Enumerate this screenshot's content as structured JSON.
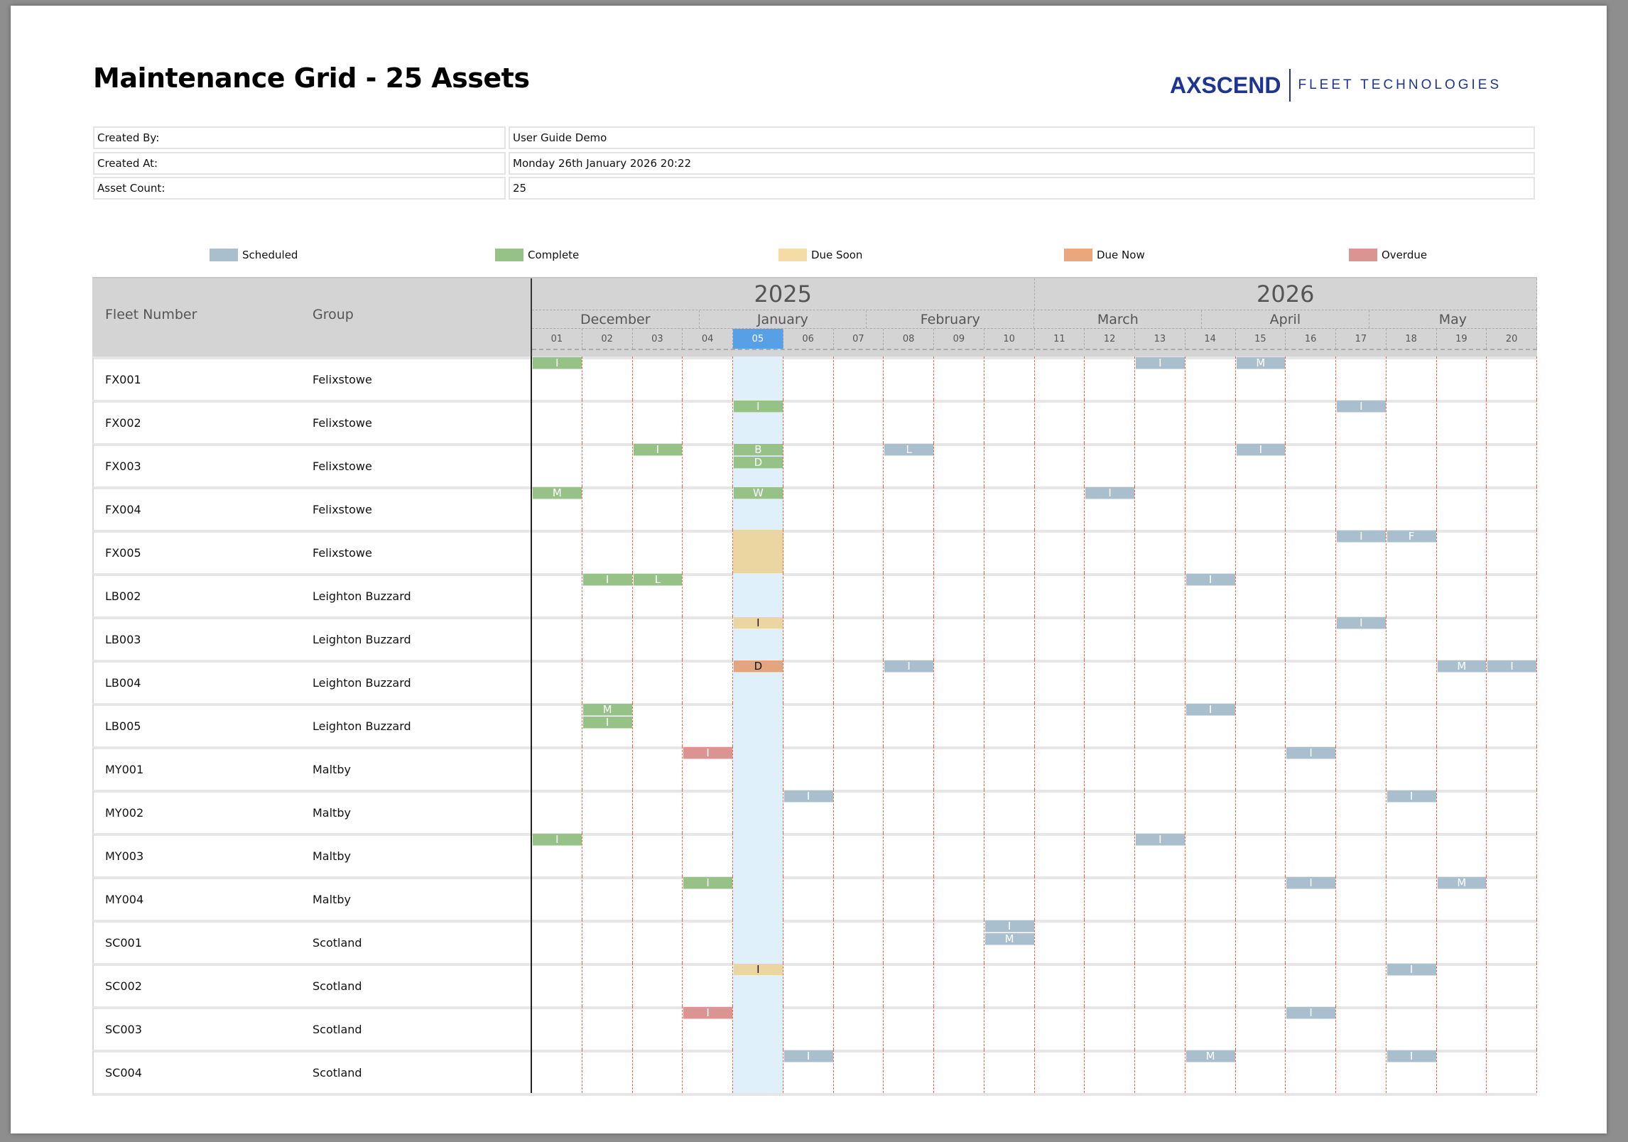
{
  "title": "Maintenance Grid - 25 Assets",
  "logo": {
    "main": "AXSCEND",
    "sub": "FLEET TECHNOLOGIES",
    "color": "#1d3591"
  },
  "info": [
    {
      "label": "Created By:",
      "value": "User Guide Demo"
    },
    {
      "label": "Created At:",
      "value": "Monday 26th January 2026 20:22"
    },
    {
      "label": "Asset Count:",
      "value": "25"
    }
  ],
  "legend": [
    {
      "key": "scheduled",
      "label": "Scheduled",
      "color": "#a9bfcd"
    },
    {
      "key": "complete",
      "label": "Complete",
      "color": "#96c187"
    },
    {
      "key": "due_soon",
      "label": "Due Soon",
      "color": "#f5dca6"
    },
    {
      "key": "due_now",
      "label": "Due Now",
      "color": "#eba77c"
    },
    {
      "key": "overdue",
      "label": "Overdue",
      "color": "#dc9493"
    }
  ],
  "status_colors": {
    "scheduled": "#a9bfcd",
    "complete": "#96c187",
    "due_soon": "#ebd6a2",
    "due_now": "#e2a57e",
    "overdue": "#dc9493",
    "today_column": "#dff0fb",
    "today_header": "#58a0e6"
  },
  "grid": {
    "headers": {
      "fleet": "Fleet Number",
      "group": "Group"
    },
    "years": [
      {
        "label": "2025",
        "span": 10
      },
      {
        "label": "2026",
        "span": 10
      }
    ],
    "months": [
      {
        "label": "December",
        "span": 3.33
      },
      {
        "label": "January",
        "span": 3.33
      },
      {
        "label": "February",
        "span": 3.34
      },
      {
        "label": "March",
        "span": 3.33
      },
      {
        "label": "April",
        "span": 3.33
      },
      {
        "label": "May",
        "span": 3.34
      }
    ],
    "weeks": [
      "01",
      "02",
      "03",
      "04",
      "05",
      "06",
      "07",
      "08",
      "09",
      "10",
      "11",
      "12",
      "13",
      "14",
      "15",
      "16",
      "17",
      "18",
      "19",
      "20"
    ],
    "current_week_index": 4,
    "rows": [
      {
        "fleet": "FX001",
        "group": "Felixstowe",
        "events": [
          {
            "week": 0,
            "status": "complete",
            "codes": [
              "I"
            ]
          },
          {
            "week": 12,
            "status": "scheduled",
            "codes": [
              "I"
            ]
          },
          {
            "week": 14,
            "status": "scheduled",
            "codes": [
              "M"
            ]
          }
        ]
      },
      {
        "fleet": "FX002",
        "group": "Felixstowe",
        "events": [
          {
            "week": 4,
            "status": "complete",
            "codes": [
              "I"
            ]
          },
          {
            "week": 16,
            "status": "scheduled",
            "codes": [
              "I"
            ]
          }
        ]
      },
      {
        "fleet": "FX003",
        "group": "Felixstowe",
        "events": [
          {
            "week": 2,
            "status": "complete",
            "codes": [
              "I"
            ]
          },
          {
            "week": 4,
            "status": "complete",
            "codes": [
              "B",
              "D"
            ]
          },
          {
            "week": 7,
            "status": "scheduled",
            "codes": [
              "L"
            ]
          },
          {
            "week": 14,
            "status": "scheduled",
            "codes": [
              "I"
            ]
          }
        ]
      },
      {
        "fleet": "FX004",
        "group": "Felixstowe",
        "events": [
          {
            "week": 0,
            "status": "complete",
            "codes": [
              "M"
            ]
          },
          {
            "week": 4,
            "status": "complete",
            "codes": [
              "W"
            ]
          },
          {
            "week": 11,
            "status": "scheduled",
            "codes": [
              "I"
            ]
          }
        ]
      },
      {
        "fleet": "FX005",
        "group": "Felixstowe",
        "fill_week": {
          "week": 4,
          "status": "due_soon"
        },
        "events": [
          {
            "week": 16,
            "status": "scheduled",
            "codes": [
              "I"
            ]
          },
          {
            "week": 17,
            "status": "scheduled",
            "codes": [
              "F"
            ]
          }
        ]
      },
      {
        "fleet": "LB002",
        "group": "Leighton Buzzard",
        "events": [
          {
            "week": 1,
            "status": "complete",
            "codes": [
              "I"
            ]
          },
          {
            "week": 2,
            "status": "complete",
            "codes": [
              "L"
            ]
          },
          {
            "week": 13,
            "status": "scheduled",
            "codes": [
              "I"
            ]
          }
        ]
      },
      {
        "fleet": "LB003",
        "group": "Leighton Buzzard",
        "events": [
          {
            "week": 4,
            "status": "due_soon",
            "codes": [
              "I"
            ]
          },
          {
            "week": 16,
            "status": "scheduled",
            "codes": [
              "I"
            ]
          }
        ]
      },
      {
        "fleet": "LB004",
        "group": "Leighton Buzzard",
        "events": [
          {
            "week": 4,
            "status": "due_now",
            "codes": [
              "D"
            ]
          },
          {
            "week": 7,
            "status": "scheduled",
            "codes": [
              "I"
            ]
          },
          {
            "week": 18,
            "status": "scheduled",
            "codes": [
              "M"
            ]
          },
          {
            "week": 19,
            "status": "scheduled",
            "codes": [
              "I"
            ]
          }
        ]
      },
      {
        "fleet": "LB005",
        "group": "Leighton Buzzard",
        "events": [
          {
            "week": 1,
            "status": "complete",
            "codes": [
              "M",
              "I"
            ]
          },
          {
            "week": 13,
            "status": "scheduled",
            "codes": [
              "I"
            ]
          }
        ]
      },
      {
        "fleet": "MY001",
        "group": "Maltby",
        "events": [
          {
            "week": 3,
            "status": "overdue",
            "codes": [
              "I"
            ]
          },
          {
            "week": 15,
            "status": "scheduled",
            "codes": [
              "I"
            ]
          }
        ]
      },
      {
        "fleet": "MY002",
        "group": "Maltby",
        "events": [
          {
            "week": 5,
            "status": "scheduled",
            "codes": [
              "I"
            ]
          },
          {
            "week": 17,
            "status": "scheduled",
            "codes": [
              "I"
            ]
          }
        ]
      },
      {
        "fleet": "MY003",
        "group": "Maltby",
        "events": [
          {
            "week": 0,
            "status": "complete",
            "codes": [
              "I"
            ]
          },
          {
            "week": 12,
            "status": "scheduled",
            "codes": [
              "I"
            ]
          }
        ]
      },
      {
        "fleet": "MY004",
        "group": "Maltby",
        "events": [
          {
            "week": 3,
            "status": "complete",
            "codes": [
              "I"
            ]
          },
          {
            "week": 15,
            "status": "scheduled",
            "codes": [
              "I"
            ]
          },
          {
            "week": 18,
            "status": "scheduled",
            "codes": [
              "M"
            ]
          }
        ]
      },
      {
        "fleet": "SC001",
        "group": "Scotland",
        "events": [
          {
            "week": 9,
            "status": "scheduled",
            "codes": [
              "I",
              "M"
            ]
          }
        ]
      },
      {
        "fleet": "SC002",
        "group": "Scotland",
        "events": [
          {
            "week": 4,
            "status": "due_soon",
            "codes": [
              "I"
            ]
          },
          {
            "week": 17,
            "status": "scheduled",
            "codes": [
              "I"
            ]
          }
        ]
      },
      {
        "fleet": "SC003",
        "group": "Scotland",
        "events": [
          {
            "week": 3,
            "status": "overdue",
            "codes": [
              "I"
            ]
          },
          {
            "week": 15,
            "status": "scheduled",
            "codes": [
              "I"
            ]
          }
        ]
      },
      {
        "fleet": "SC004",
        "group": "Scotland",
        "events": [
          {
            "week": 5,
            "status": "scheduled",
            "codes": [
              "I"
            ]
          },
          {
            "week": 13,
            "status": "scheduled",
            "codes": [
              "M"
            ]
          },
          {
            "week": 17,
            "status": "scheduled",
            "codes": [
              "I"
            ]
          }
        ]
      }
    ]
  }
}
